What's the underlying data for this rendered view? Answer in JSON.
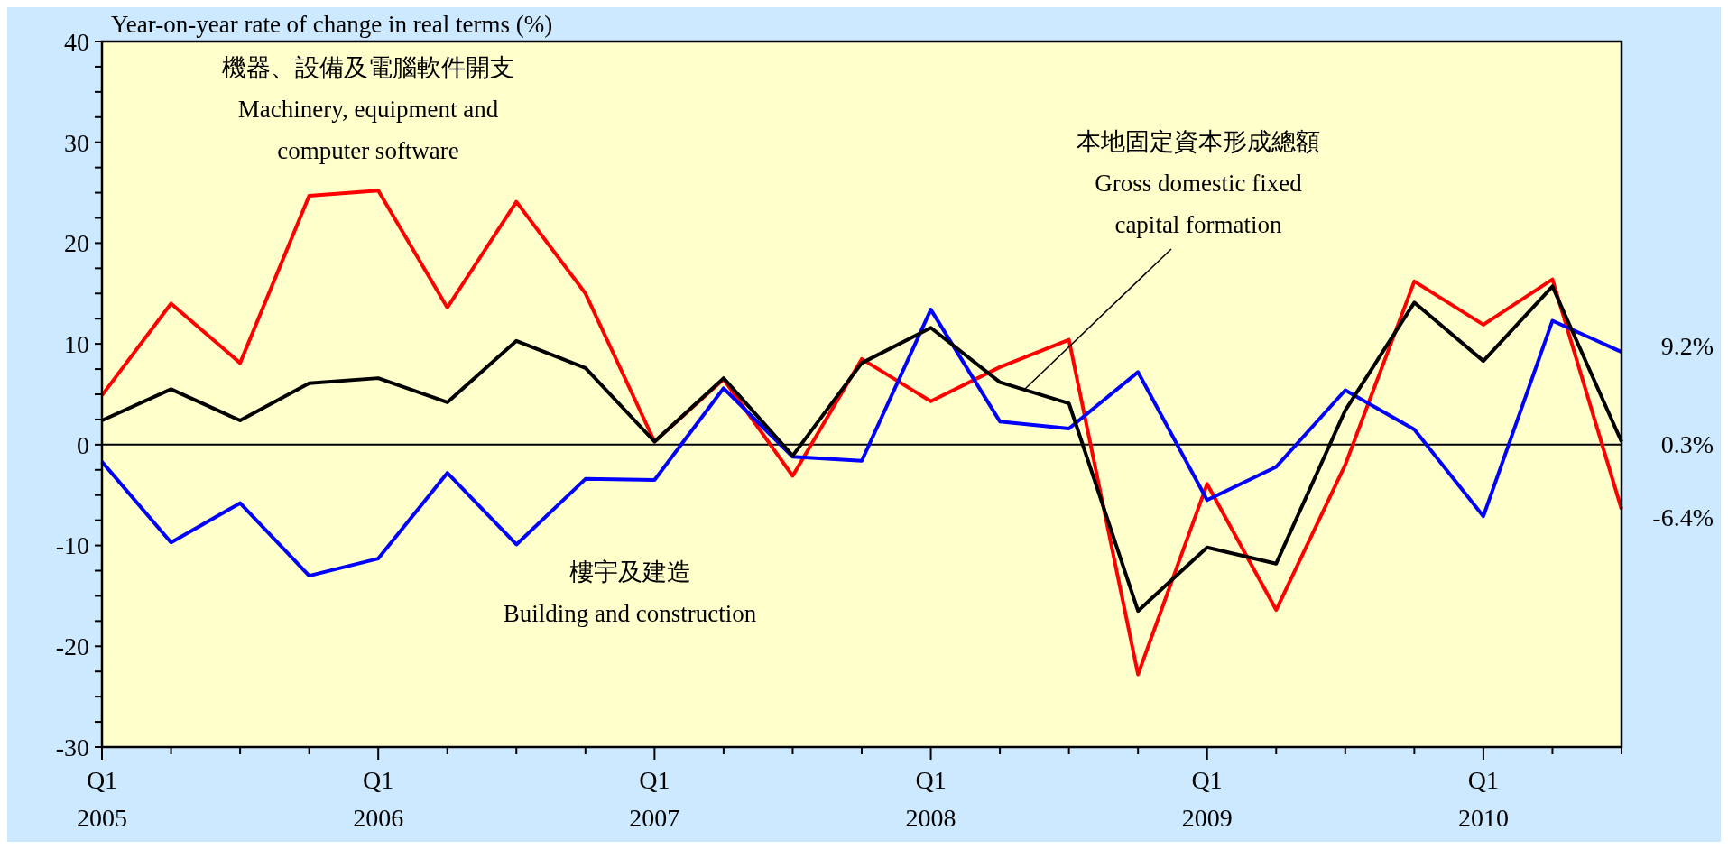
{
  "chart_data": {
    "type": "line",
    "ylabel": "Year-on-year rate of change in real terms (%)",
    "categories": [
      "Q1\n2005",
      null,
      null,
      null,
      "Q1\n2006",
      null,
      null,
      null,
      "Q1\n2007",
      null,
      null,
      null,
      "Q1\n2008",
      null,
      null,
      null,
      "Q1\n2009",
      null,
      null,
      null,
      "Q1\n2010",
      null,
      null
    ],
    "series": [
      {
        "name": "機器、設備及電腦軟件開支\nMachinery, equipment and\ncomputer software",
        "color": "#ff0000",
        "values": [
          4.9,
          14.0,
          8.1,
          24.7,
          25.2,
          13.6,
          24.1,
          15.0,
          0.3,
          6.5,
          -3.1,
          8.5,
          4.3,
          7.7,
          10.4,
          -22.8,
          -3.9,
          -16.4,
          -2.0,
          16.2,
          11.9,
          16.4,
          -6.4
        ]
      },
      {
        "name": "樓宇及建造\nBuilding and construction",
        "color": "#0000ff",
        "values": [
          -1.7,
          -9.7,
          -5.8,
          -13.0,
          -11.3,
          -2.8,
          -9.9,
          -3.4,
          -3.5,
          5.6,
          -1.2,
          -1.6,
          13.4,
          2.3,
          1.6,
          7.2,
          -5.5,
          -2.2,
          5.4,
          1.5,
          -7.1,
          12.3,
          9.2
        ]
      },
      {
        "name": "本地固定資本形成總額\nGross domestic fixed\ncapital formation",
        "color": "#000000",
        "values": [
          2.4,
          5.5,
          2.4,
          6.1,
          6.6,
          4.2,
          10.3,
          7.6,
          0.3,
          6.6,
          -1.1,
          8.1,
          11.6,
          6.2,
          4.1,
          -16.5,
          -10.2,
          -11.8,
          3.4,
          14.1,
          8.3,
          15.7,
          0.3
        ]
      }
    ],
    "ylim": [
      -30,
      40
    ],
    "yticks": [
      -30,
      {
        "value": -27.5,
        "label": null
      },
      {
        "value": -25,
        "label": null
      },
      {
        "value": -22.5,
        "label": null
      },
      -20,
      {
        "value": -17.5,
        "label": null
      },
      {
        "value": -15,
        "label": null
      },
      {
        "value": -12.5,
        "label": null
      },
      -10,
      {
        "value": -7.5,
        "label": null
      },
      {
        "value": -5,
        "label": null
      },
      {
        "value": -2.5,
        "label": null
      },
      0,
      {
        "value": 2.5,
        "label": null
      },
      {
        "value": 5,
        "label": null
      },
      {
        "value": 7.5,
        "label": null
      },
      10,
      {
        "value": 12.5,
        "label": null
      },
      {
        "value": 15,
        "label": null
      },
      {
        "value": 17.5,
        "label": null
      },
      20,
      {
        "value": 22.5,
        "label": null
      },
      {
        "value": 25,
        "label": null
      },
      {
        "value": 27.5,
        "label": null
      },
      30,
      {
        "value": 32.5,
        "label": null
      },
      {
        "value": 35,
        "label": null
      },
      {
        "value": 37.5,
        "label": null
      },
      40
    ],
    "ref_lines": [
      {
        "axis": "y",
        "value": 0,
        "color": "#000000"
      }
    ],
    "annotations": [
      "9.2%",
      "0.3%",
      "-6.4%"
    ],
    "grid": false,
    "marker": "none",
    "line_style": "solid"
  }
}
